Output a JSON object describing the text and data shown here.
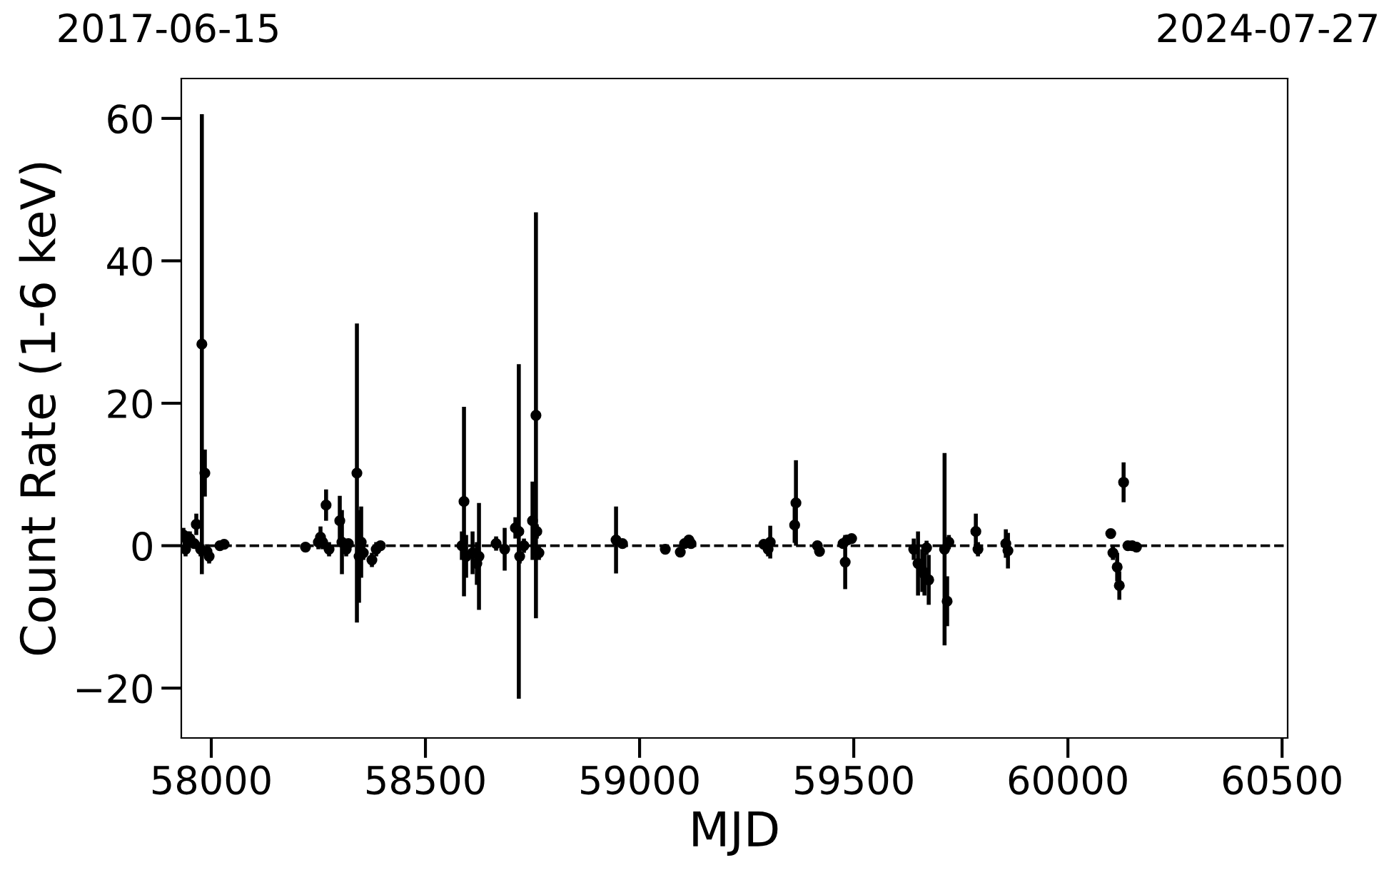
{
  "chart_data": {
    "type": "scatter",
    "xlabel": "MJD",
    "ylabel": "Count Rate (1-6 keV)",
    "annotations": [
      "2017-06-15",
      "2024-07-27"
    ],
    "xlim": [
      57930,
      60513
    ],
    "xticks": [
      58000,
      58500,
      59000,
      59500,
      60000,
      60500
    ],
    "ylim": [
      -27,
      65.6
    ],
    "yticks": [
      {
        "value": -20,
        "label": "−20"
      },
      0,
      20,
      40,
      60
    ],
    "grid": false,
    "marker": "circle",
    "ref_lines": [
      {
        "axis": "y",
        "value": 0,
        "color": "#000000",
        "line_style": "dashed"
      }
    ],
    "series": [
      {
        "color": "#000000",
        "x": [
          57935,
          57940,
          57945,
          57950,
          57960,
          57965,
          57975,
          57978,
          57985,
          57990,
          57995,
          58020,
          58030,
          58220,
          58250,
          58255,
          58260,
          58268,
          58275,
          58300,
          58305,
          58315,
          58320,
          58340,
          58345,
          58350,
          58355,
          58375,
          58385,
          58395,
          58585,
          58590,
          58595,
          58610,
          58620,
          58625,
          58665,
          58685,
          58710,
          58718,
          58720,
          58730,
          58750,
          58758,
          58760,
          58765,
          58945,
          58960,
          59060,
          59095,
          59105,
          59115,
          59120,
          59290,
          59300,
          59305,
          59362,
          59365,
          59415,
          59420,
          59475,
          59480,
          59485,
          59495,
          59640,
          59650,
          59660,
          59665,
          59670,
          59675,
          59712,
          59718,
          59722,
          59785,
          59790,
          59855,
          59860,
          60100,
          60105,
          60115,
          60120,
          60130,
          60140,
          60150,
          60160
        ],
        "values": [
          1.5,
          -0.5,
          0.5,
          1.0,
          0.3,
          3.0,
          -0.5,
          28.3,
          10.2,
          -0.8,
          -1.5,
          0.0,
          0.2,
          -0.2,
          0.5,
          1.2,
          0.5,
          5.7,
          -0.5,
          3.5,
          0.5,
          -0.5,
          0.3,
          10.2,
          -1.5,
          0.5,
          -1.0,
          -2.0,
          -0.5,
          0.0,
          0.0,
          6.2,
          -1.5,
          -1.0,
          -2.5,
          -1.5,
          0.3,
          -0.5,
          2.5,
          2.0,
          -1.5,
          0.0,
          3.5,
          18.3,
          2.0,
          -1.0,
          0.8,
          0.3,
          -0.5,
          -0.9,
          0.3,
          0.8,
          0.3,
          0.2,
          -0.5,
          0.5,
          2.9,
          6.0,
          0.0,
          -0.8,
          0.3,
          -2.3,
          0.8,
          1.0,
          -0.5,
          -2.5,
          -3.5,
          -4.0,
          -0.3,
          -4.8,
          -0.5,
          -7.8,
          0.5,
          2.0,
          -0.5,
          0.3,
          -0.7,
          1.7,
          -1.0,
          -3.0,
          -5.6,
          8.9,
          0.0,
          0.0,
          -0.2
        ],
        "errors": [
          1,
          1,
          1.5,
          1,
          0.5,
          1.5,
          1,
          32.3,
          3.3,
          1,
          1,
          0.5,
          0.5,
          0.5,
          1,
          1.5,
          1,
          2.2,
          1,
          3.5,
          4.5,
          1,
          0.5,
          21,
          6.5,
          5,
          1,
          1,
          1,
          0.5,
          2,
          13.3,
          3,
          3,
          3,
          7.5,
          1,
          3,
          1.5,
          23.5,
          1,
          1,
          5.5,
          28.5,
          1,
          1,
          4.7,
          0.5,
          0.5,
          0.5,
          0.5,
          0.5,
          0.5,
          0.5,
          1,
          2.3,
          2.5,
          6,
          0.5,
          0.5,
          0.5,
          3.8,
          0.5,
          0.5,
          1.5,
          4.5,
          3,
          3,
          1,
          3.5,
          13.5,
          3.5,
          1,
          2.5,
          1,
          2,
          2.5,
          0.5,
          1,
          2,
          2,
          2.8,
          0.5,
          0.5,
          0.5
        ]
      }
    ]
  }
}
